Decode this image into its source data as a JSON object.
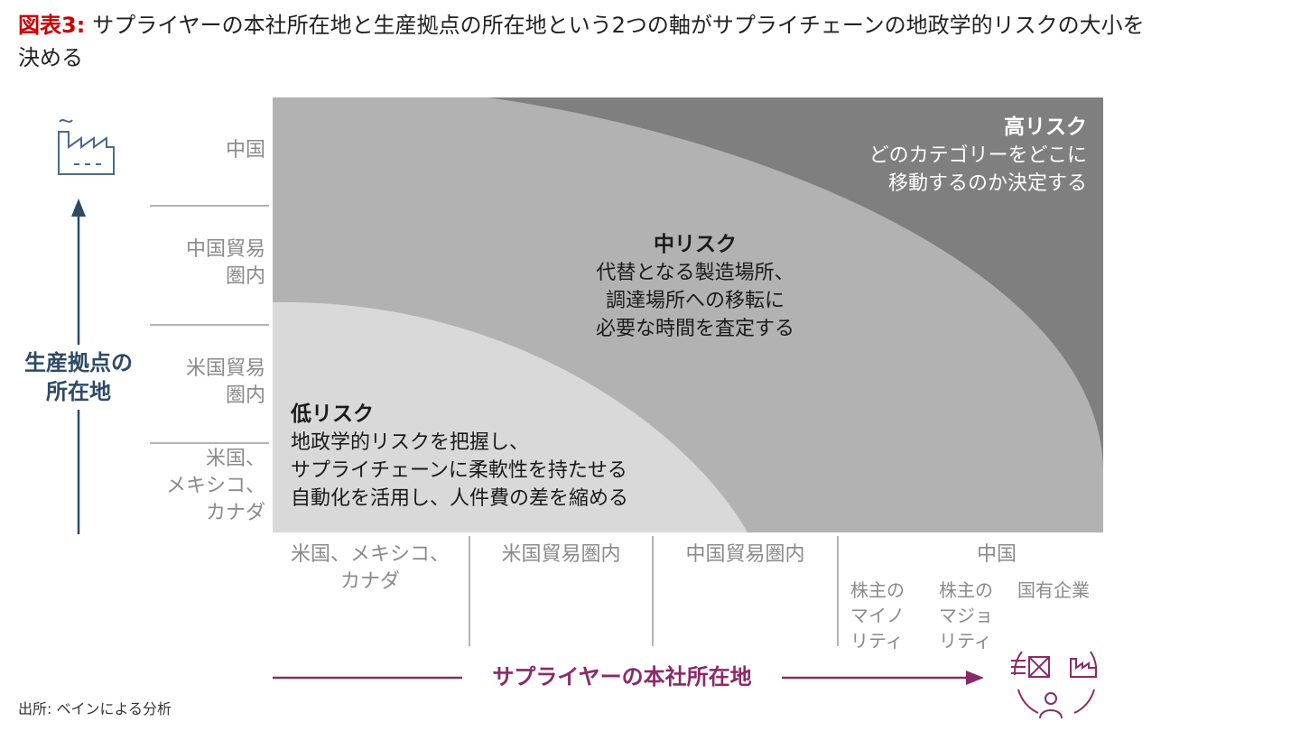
{
  "title": {
    "figure_label": "図表3:",
    "text": "サプライヤーの本社所在地と生産拠点の所在地という2つの軸がサプライチェーンの地政学的リスクの大小を決める"
  },
  "y_axis": {
    "title_lines": [
      "生産拠点の",
      "所在地"
    ],
    "icon": "factory-icon",
    "categories": [
      {
        "lines": [
          "中国"
        ]
      },
      {
        "lines": [
          "中国貿易",
          "圏内"
        ]
      },
      {
        "lines": [
          "米国貿易",
          "圏内"
        ]
      },
      {
        "lines": [
          "米国、",
          "メキシコ、",
          "カナダ"
        ]
      }
    ]
  },
  "x_axis": {
    "title": "サプライヤーの本社所在地",
    "icon": "supplier-network-icon",
    "categories": [
      {
        "lines": [
          "米国、メキシコ、",
          "カナダ"
        ]
      },
      {
        "lines": [
          "米国貿易圏内"
        ]
      },
      {
        "lines": [
          "中国貿易圏内"
        ]
      },
      {
        "lines": [
          "中国"
        ]
      }
    ],
    "china_subcategories": [
      {
        "lines": [
          "株主の",
          "マイノ",
          "リティ"
        ]
      },
      {
        "lines": [
          "株主の",
          "マジョ",
          "リティ"
        ]
      },
      {
        "lines": [
          "国有企業"
        ]
      }
    ]
  },
  "zones": {
    "high": {
      "title": "高リスク",
      "lines": [
        "どのカテゴリーをどこに",
        "移動するのか決定する"
      ],
      "color": "#7f7f7f"
    },
    "mid": {
      "title": "中リスク",
      "lines": [
        "代替となる製造場所、",
        "調達場所への移転に",
        "必要な時間を査定する"
      ],
      "color": "#b2b2b2"
    },
    "low": {
      "title": "低リスク",
      "lines": [
        "地政学的リスクを把握し、",
        "サプライチェーンに柔軟性を持たせる",
        "自動化を活用し、人件費の差を縮める"
      ],
      "color": "#d9d9d9"
    }
  },
  "colors": {
    "y_axis": "#2e4a66",
    "x_axis": "#8a2a6a",
    "figure_label": "#cc0000"
  },
  "source": "出所: ベインによる分析"
}
